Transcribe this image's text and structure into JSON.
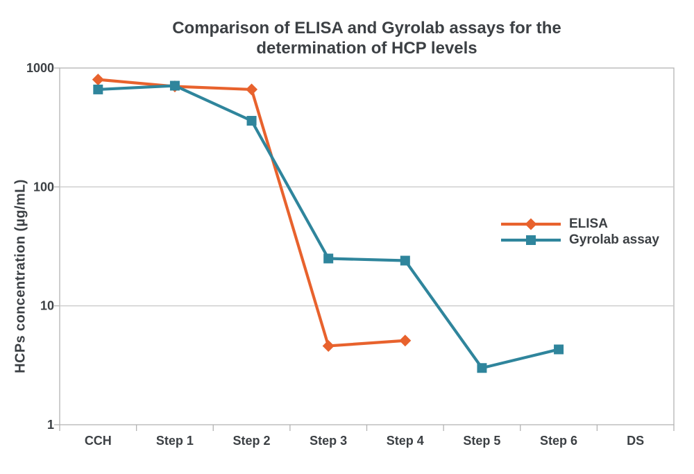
{
  "title": {
    "line1": "Comparison of ELISA and Gyrolab assays for the",
    "line2": "determination of HCP levels"
  },
  "y_axis": {
    "label": "HCPs concentration (µg/mL)",
    "scale": "log",
    "ticks": [
      {
        "value": 1000,
        "label": "1000"
      },
      {
        "value": 100,
        "label": "100"
      },
      {
        "value": 10,
        "label": "10"
      },
      {
        "value": 1,
        "label": "1"
      }
    ]
  },
  "x_axis": {
    "categories": [
      "CCH",
      "Step 1",
      "Step 2",
      "Step 3",
      "Step 4",
      "Step 5",
      "Step 6",
      "DS"
    ]
  },
  "legend": {
    "items": [
      "ELISA",
      "Gyrolab assay"
    ],
    "position": "center-right"
  },
  "chart_data": {
    "type": "line",
    "categories": [
      "CCH",
      "Step 1",
      "Step 2",
      "Step 3",
      "Step 4",
      "Step 5",
      "Step 6",
      "DS"
    ],
    "series": [
      {
        "name": "ELISA",
        "marker": "diamond",
        "color": "#E8622D",
        "values": [
          800,
          700,
          660,
          4.6,
          5.1,
          null,
          null,
          null
        ]
      },
      {
        "name": "Gyrolab assay",
        "marker": "square",
        "color": "#2F859C",
        "values": [
          660,
          710,
          360,
          25,
          24,
          3.0,
          4.3,
          null
        ]
      }
    ],
    "title": "Comparison of ELISA and Gyrolab assays for the determination of HCP levels",
    "xlabel": "",
    "ylabel": "HCPs concentration (µg/mL)",
    "ylim": [
      1,
      1000
    ],
    "yscale": "log",
    "grid": "horizontal-decades",
    "legend_position": "center-right"
  },
  "colors": {
    "elisa": "#E8622D",
    "gyrolab": "#2F859C",
    "gridline": "#CBCBCB",
    "frame": "#B3B3B3",
    "text": "#3C4044"
  }
}
